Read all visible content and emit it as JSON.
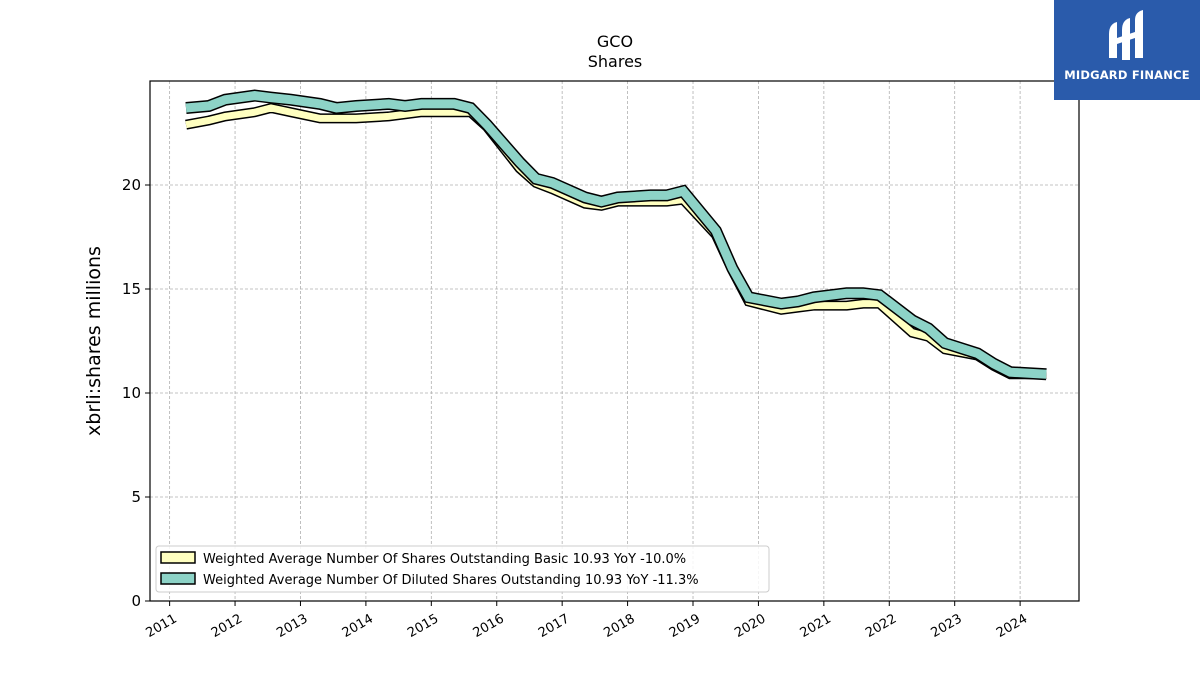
{
  "brand": {
    "name": "MIDGARD FINANCE",
    "logo_color": "#2a5bab"
  },
  "chart_data": {
    "type": "line",
    "title": "GCO",
    "subtitle": "Shares",
    "xlabel": "",
    "ylabel": "xbrli:shares millions",
    "xlim": [
      2010.7,
      2024.9
    ],
    "ylim": [
      0,
      25
    ],
    "x_ticks": [
      "2011",
      "2012",
      "2013",
      "2014",
      "2015",
      "2016",
      "2017",
      "2018",
      "2019",
      "2020",
      "2021",
      "2022",
      "2023",
      "2024"
    ],
    "y_ticks": [
      0,
      5,
      10,
      15,
      20
    ],
    "grid": true,
    "legend_position": "lower-left",
    "x": [
      2011.25,
      2011.6,
      2011.85,
      2012.3,
      2012.55,
      2012.85,
      2013.3,
      2013.55,
      2013.85,
      2014.35,
      2014.6,
      2014.85,
      2015.35,
      2015.6,
      2015.85,
      2016.35,
      2016.6,
      2016.85,
      2017.35,
      2017.6,
      2017.85,
      2018.35,
      2018.6,
      2018.85,
      2019.35,
      2019.6,
      2019.85,
      2020.35,
      2020.6,
      2020.85,
      2021.35,
      2021.6,
      2021.85,
      2022.35,
      2022.6,
      2022.85,
      2023.35,
      2023.6,
      2023.85,
      2024.4
    ],
    "series": [
      {
        "name": "Weighted Average Number Of Shares Outstanding Basic  10.93 YoY -10.0%",
        "color": "#ffffc0",
        "values": [
          22.9,
          23.1,
          23.3,
          23.5,
          23.7,
          23.5,
          23.2,
          23.2,
          23.2,
          23.3,
          23.4,
          23.5,
          23.5,
          23.5,
          22.8,
          20.8,
          20.1,
          19.8,
          19.1,
          19.0,
          19.2,
          19.2,
          19.2,
          19.3,
          17.6,
          15.9,
          14.4,
          14.0,
          14.1,
          14.2,
          14.2,
          14.3,
          14.3,
          12.9,
          12.7,
          12.1,
          11.8,
          11.3,
          10.9,
          10.9
        ]
      },
      {
        "name": "Weighted Average Number Of Diluted Shares Outstanding  10.93 YoY -11.3%",
        "color": "#8dd3c7",
        "values": [
          23.7,
          23.8,
          24.1,
          24.3,
          24.2,
          24.1,
          23.9,
          23.7,
          23.8,
          23.9,
          23.8,
          23.9,
          23.9,
          23.7,
          22.9,
          21.1,
          20.3,
          20.1,
          19.4,
          19.2,
          19.4,
          19.5,
          19.5,
          19.7,
          17.8,
          16.0,
          14.6,
          14.3,
          14.4,
          14.6,
          14.8,
          14.8,
          14.7,
          13.5,
          13.1,
          12.4,
          11.9,
          11.4,
          11.0,
          10.9
        ]
      }
    ]
  }
}
